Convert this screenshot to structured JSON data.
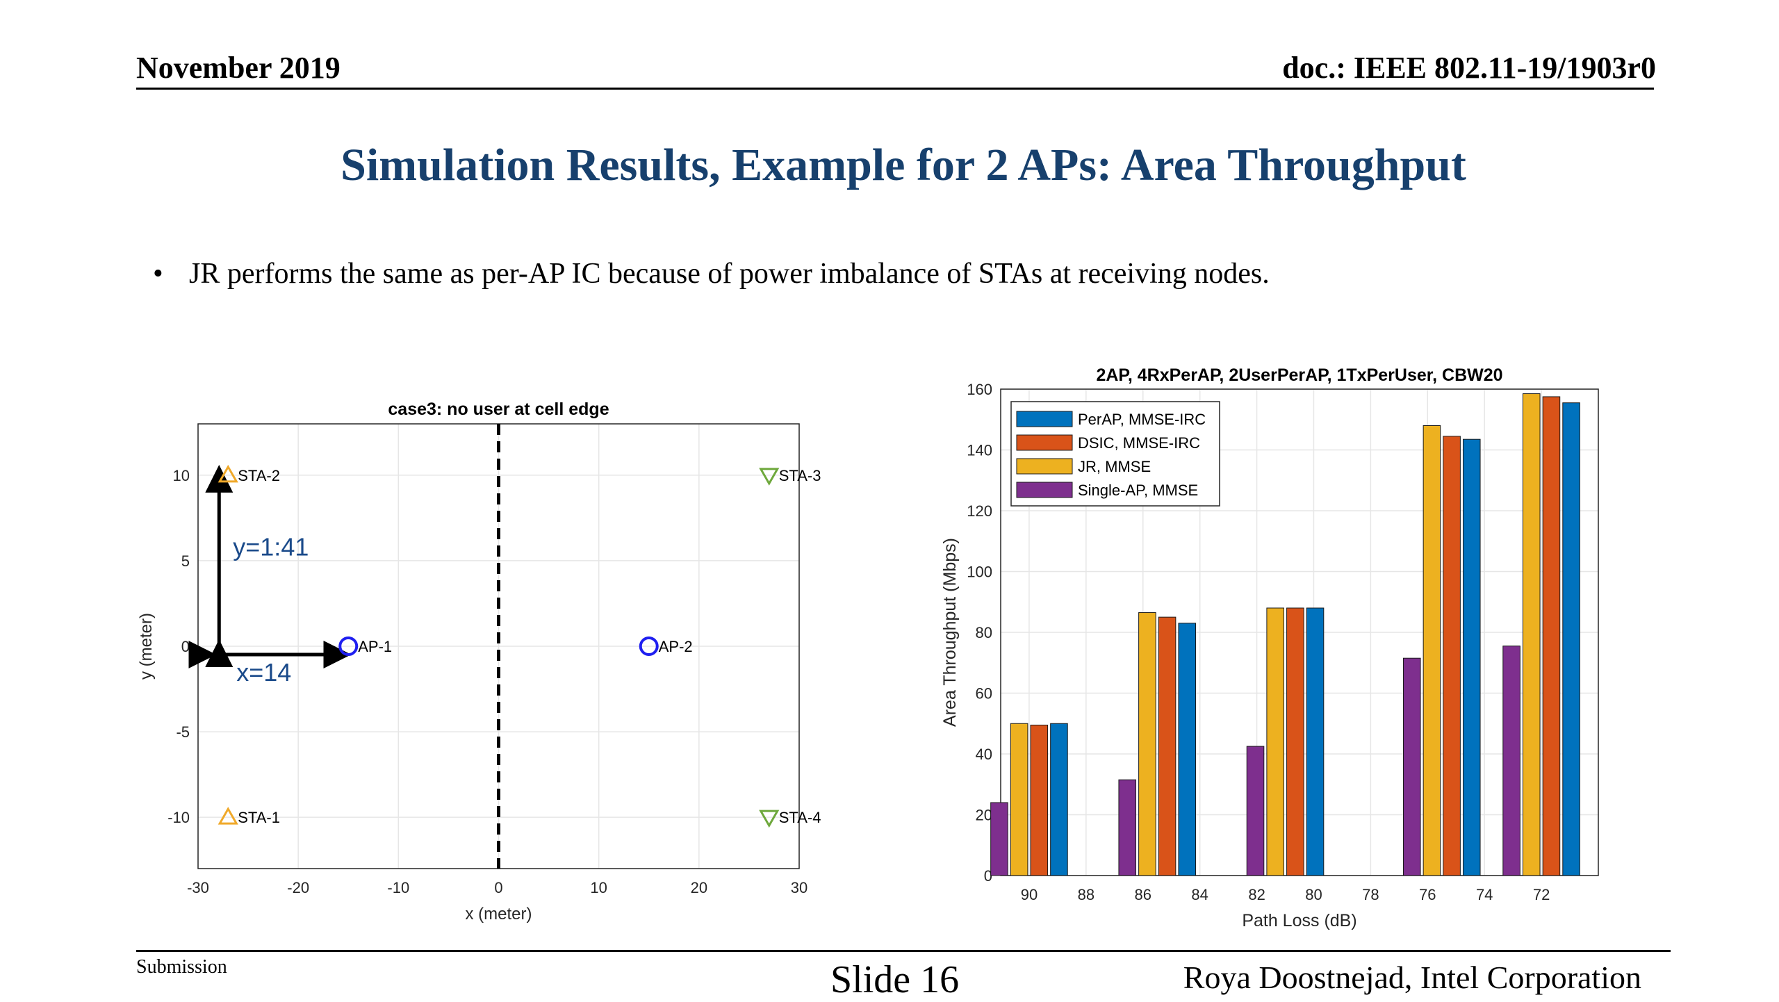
{
  "header": {
    "date": "November 2019",
    "doc": "doc.: IEEE 802.11-19/1903r0"
  },
  "title": "Simulation Results, Example for 2 APs:  Area Throughput",
  "bullet": {
    "glyph": "•",
    "text": "JR performs the same as per-AP IC because of power imbalance of STAs at receiving nodes."
  },
  "footer": {
    "left": "Submission",
    "center": "Slide 16",
    "right": "Roya Doostnejad, Intel Corporation"
  },
  "chart_data": [
    {
      "type": "scatter",
      "title": "case3: no user at cell edge",
      "xlabel": "x (meter)",
      "ylabel": "y (meter)",
      "xlim": [
        -30,
        30
      ],
      "ylim": [
        -13,
        13
      ],
      "xticks": [
        "-30",
        "-20",
        "-10",
        "0",
        "10",
        "20",
        "30"
      ],
      "yticks": [
        "-10",
        "-5",
        "0",
        "5",
        "10"
      ],
      "grid": true,
      "points": [
        {
          "label": "AP-1",
          "x": -15,
          "y": 0,
          "marker": "circle",
          "color": "#1f1ff0"
        },
        {
          "label": "AP-2",
          "x": 15,
          "y": 0,
          "marker": "circle",
          "color": "#1f1ff0"
        },
        {
          "label": "STA-2",
          "x": -27,
          "y": 10,
          "marker": "triangle-up",
          "color": "#f0a92a"
        },
        {
          "label": "STA-1",
          "x": -27,
          "y": -10,
          "marker": "triangle-up",
          "color": "#f0a92a"
        },
        {
          "label": "STA-3",
          "x": 27,
          "y": 10,
          "marker": "triangle-down",
          "color": "#6ea83c"
        },
        {
          "label": "STA-4",
          "x": 27,
          "y": -10,
          "marker": "triangle-down",
          "color": "#6ea83c"
        }
      ],
      "divider_x": 0,
      "annotations": {
        "y_range": "y=1:41",
        "x_value": "x=14",
        "color": "#1a4a8a"
      }
    },
    {
      "type": "bar",
      "title": "2AP, 4RxPerAP, 2UserPerAP, 1TxPerUser, CBW20",
      "xlabel": "Path Loss (dB)",
      "ylabel": "Area Throughput (Mbps)",
      "xlim": [
        91,
        70
      ],
      "ylim": [
        0,
        160
      ],
      "xticks": [
        "90",
        "88",
        "86",
        "84",
        "82",
        "80",
        "78",
        "76",
        "74",
        "72"
      ],
      "yticks": [
        "0",
        "20",
        "40",
        "60",
        "80",
        "100",
        "120",
        "140",
        "160"
      ],
      "grid": true,
      "legend_position": "top-left",
      "groups": [
        90,
        85.5,
        81,
        75.5,
        72
      ],
      "series": [
        {
          "name": "Single-AP, MMSE",
          "color": "#7e2f8e",
          "values": [
            24,
            31.5,
            42.5,
            71.5,
            75.5
          ]
        },
        {
          "name": "JR, MMSE",
          "color": "#edb120",
          "values": [
            50,
            86.5,
            88,
            148,
            158.5
          ]
        },
        {
          "name": "DSIC, MMSE-IRC",
          "color": "#d95319",
          "values": [
            49.5,
            85,
            88,
            144.5,
            157.5
          ]
        },
        {
          "name": "PerAP, MMSE-IRC",
          "color": "#0072bd",
          "values": [
            50,
            83,
            88,
            143.5,
            155.5
          ]
        }
      ],
      "legend_order": [
        "PerAP, MMSE-IRC",
        "DSIC, MMSE-IRC",
        "JR, MMSE",
        "Single-AP, MMSE"
      ]
    }
  ]
}
